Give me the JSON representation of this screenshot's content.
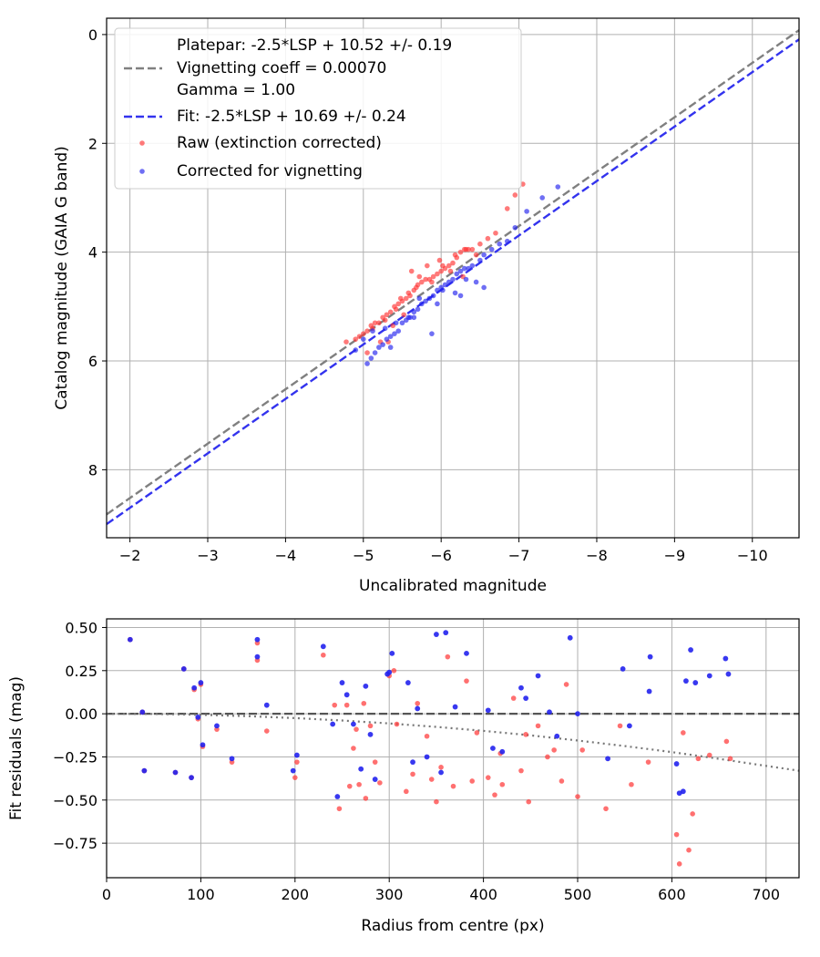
{
  "chart_data": [
    {
      "type": "scatter",
      "xlabel": "Uncalibrated magnitude",
      "ylabel": "Catalog magnitude (GAIA G band)",
      "xlim": [
        -1.7,
        -10.6
      ],
      "ylim": [
        9.25,
        -0.3
      ],
      "x_inverted": true,
      "y_inverted": true,
      "grid": true,
      "legend_position": "upper-left",
      "xticks": [
        -2,
        -3,
        -4,
        -5,
        -6,
        -7,
        -8,
        -9,
        -10
      ],
      "xtick_labels": [
        "−2",
        "−3",
        "−4",
        "−5",
        "−6",
        "−7",
        "−8",
        "−9",
        "−10"
      ],
      "yticks": [
        0,
        2,
        4,
        6,
        8
      ],
      "ytick_labels": [
        "0",
        "2",
        "4",
        "6",
        "8"
      ],
      "lines": [
        {
          "name": "Platepar",
          "label_lines": [
            "Platepar: -2.5*LSP + 10.52 +/- 0.19",
            "Vignetting coeff = 0.00070",
            "Gamma = 1.00"
          ],
          "style": "dashed",
          "color": "#808080",
          "x": [
            -1.7,
            -10.6
          ],
          "y": [
            8.82,
            -0.08
          ]
        },
        {
          "name": "Fit",
          "label_lines": [
            "Fit: -2.5*LSP + 10.69 +/- 0.24"
          ],
          "style": "dashed",
          "color": "#3333ee",
          "x": [
            -1.7,
            -10.6
          ],
          "y": [
            9.0,
            0.09
          ]
        }
      ],
      "series": [
        {
          "name": "Raw (extinction corrected)",
          "color": "#ff3333",
          "x": [
            -4.78,
            -4.9,
            -4.95,
            -5.0,
            -5.05,
            -5.1,
            -5.15,
            -5.2,
            -5.25,
            -5.3,
            -5.35,
            -5.4,
            -5.45,
            -5.5,
            -5.55,
            -5.6,
            -5.65,
            -5.7,
            -5.75,
            -5.8,
            -5.85,
            -5.9,
            -5.95,
            -6.0,
            -6.05,
            -6.1,
            -6.15,
            -6.2,
            -6.25,
            -6.3,
            -6.35,
            -6.4,
            -6.5,
            -6.6,
            -6.7,
            -6.85,
            -6.95,
            -7.05,
            -5.12,
            -5.28,
            -5.42,
            -5.58,
            -5.72,
            -5.88,
            -6.02,
            -6.18,
            -6.32,
            -5.05,
            -5.22,
            -5.38,
            -5.52,
            -5.68,
            -5.82,
            -5.98,
            -6.12,
            -6.28,
            -6.45,
            -5.32,
            -5.48,
            -5.62
          ],
          "y": [
            5.65,
            5.6,
            5.55,
            5.5,
            5.45,
            5.35,
            5.3,
            5.3,
            5.2,
            5.15,
            5.1,
            5.0,
            4.95,
            4.9,
            4.85,
            4.8,
            4.7,
            4.6,
            4.55,
            4.5,
            4.5,
            4.45,
            4.4,
            4.35,
            4.3,
            4.25,
            4.2,
            4.1,
            4.0,
            3.95,
            3.95,
            3.95,
            3.85,
            3.75,
            3.65,
            3.2,
            2.95,
            2.75,
            5.4,
            5.25,
            5.05,
            4.75,
            4.45,
            4.55,
            4.25,
            4.05,
            3.95,
            5.85,
            5.65,
            5.35,
            5.15,
            4.65,
            4.25,
            4.15,
            4.35,
            4.45,
            4.05,
            5.65,
            4.85,
            4.35
          ]
        },
        {
          "name": "Corrected for vignetting",
          "color": "#2222ee",
          "x": [
            -5.05,
            -5.1,
            -5.15,
            -5.2,
            -5.25,
            -5.3,
            -5.35,
            -5.4,
            -5.45,
            -5.5,
            -5.55,
            -5.6,
            -5.65,
            -5.7,
            -5.75,
            -5.8,
            -5.85,
            -5.9,
            -5.95,
            -6.0,
            -6.05,
            -6.1,
            -6.15,
            -6.2,
            -6.25,
            -6.3,
            -6.35,
            -6.4,
            -6.5,
            -6.55,
            -6.65,
            -6.75,
            -6.85,
            -6.95,
            -7.1,
            -7.3,
            -7.5,
            -4.9,
            -5.0,
            -5.12,
            -5.28,
            -5.42,
            -5.58,
            -5.72,
            -5.88,
            -6.02,
            -6.18,
            -6.32,
            -6.45,
            -5.35,
            -5.65,
            -5.95,
            -6.25,
            -6.55
          ],
          "y": [
            6.05,
            5.95,
            5.85,
            5.75,
            5.7,
            5.6,
            5.55,
            5.5,
            5.45,
            5.3,
            5.25,
            5.2,
            5.1,
            5.05,
            4.95,
            4.9,
            4.85,
            4.8,
            4.7,
            4.65,
            4.6,
            4.55,
            4.5,
            4.4,
            4.35,
            4.3,
            4.3,
            4.25,
            4.15,
            4.05,
            3.95,
            3.85,
            3.8,
            3.55,
            3.25,
            3.0,
            2.8,
            5.8,
            5.6,
            5.45,
            5.4,
            5.3,
            5.2,
            4.85,
            5.5,
            4.7,
            4.75,
            4.5,
            4.55,
            5.75,
            5.2,
            4.95,
            4.8,
            4.65
          ]
        }
      ],
      "legend": [
        {
          "label_lines": [
            "Platepar: -2.5*LSP + 10.52 +/- 0.19",
            "Vignetting coeff = 0.00070",
            "Gamma = 1.00"
          ],
          "kind": "line",
          "color": "#808080"
        },
        {
          "label_lines": [
            "Fit: -2.5*LSP + 10.69 +/- 0.24"
          ],
          "kind": "line",
          "color": "#3333ee"
        },
        {
          "label_lines": [
            "Raw (extinction corrected)"
          ],
          "kind": "point",
          "color": "#ff3333"
        },
        {
          "label_lines": [
            "Corrected for vignetting"
          ],
          "kind": "point",
          "color": "#2222ee"
        }
      ]
    },
    {
      "type": "scatter",
      "xlabel": "Radius from centre (px)",
      "ylabel": "Fit residuals (mag)",
      "xlim": [
        0,
        735
      ],
      "ylim": [
        -0.95,
        0.55
      ],
      "grid": true,
      "xticks": [
        0,
        100,
        200,
        300,
        400,
        500,
        600,
        700
      ],
      "xtick_labels": [
        "0",
        "100",
        "200",
        "300",
        "400",
        "500",
        "600",
        "700"
      ],
      "yticks": [
        0.5,
        0.25,
        0.0,
        -0.25,
        -0.5,
        -0.75
      ],
      "ytick_labels": [
        "0.50",
        "0.25",
        "0.00",
        "−0.25",
        "−0.50",
        "−0.75"
      ],
      "lines": [
        {
          "name": "zero",
          "style": "dashed",
          "color": "#555555",
          "x": [
            0,
            735
          ],
          "y": [
            0,
            0
          ]
        },
        {
          "name": "vignetting model",
          "style": "dotted",
          "color": "#777777",
          "x": [
            0,
            50,
            100,
            150,
            200,
            250,
            300,
            350,
            400,
            450,
            500,
            550,
            600,
            650,
            700,
            735
          ],
          "y": [
            0,
            -0.001,
            -0.006,
            -0.014,
            -0.025,
            -0.039,
            -0.056,
            -0.076,
            -0.099,
            -0.125,
            -0.155,
            -0.187,
            -0.222,
            -0.261,
            -0.302,
            -0.33
          ]
        }
      ],
      "series": [
        {
          "name": "Raw (extinction corrected)",
          "color": "#ff3333",
          "x": [
            25,
            40,
            38,
            73,
            82,
            90,
            93,
            97,
            100,
            102,
            117,
            133,
            160,
            160,
            170,
            200,
            202,
            230,
            242,
            247,
            255,
            258,
            262,
            265,
            268,
            273,
            275,
            280,
            285,
            290,
            300,
            305,
            308,
            318,
            325,
            330,
            340,
            345,
            350,
            355,
            362,
            368,
            382,
            388,
            393,
            405,
            412,
            418,
            420,
            432,
            440,
            445,
            448,
            458,
            468,
            475,
            483,
            488,
            500,
            505,
            530,
            545,
            557,
            575,
            605,
            608,
            612,
            618,
            622,
            628,
            640,
            658,
            662
          ],
          "x2_note": "",
          "y": [
            0.43,
            -0.33,
            0.01,
            -0.34,
            0.26,
            -0.37,
            0.14,
            -0.03,
            0.17,
            -0.19,
            -0.09,
            -0.28,
            0.41,
            0.31,
            -0.1,
            -0.37,
            -0.28,
            0.34,
            0.05,
            -0.55,
            0.05,
            -0.42,
            -0.2,
            -0.09,
            -0.41,
            0.06,
            -0.49,
            -0.07,
            -0.28,
            -0.4,
            0.22,
            0.25,
            -0.06,
            -0.45,
            -0.35,
            0.06,
            -0.13,
            -0.38,
            -0.51,
            -0.31,
            0.33,
            -0.42,
            0.19,
            -0.39,
            -0.11,
            -0.37,
            -0.47,
            -0.23,
            -0.41,
            0.09,
            -0.33,
            -0.12,
            -0.51,
            -0.07,
            -0.25,
            -0.21,
            -0.39,
            0.17,
            -0.48,
            -0.21,
            -0.55,
            -0.07,
            -0.41,
            -0.28,
            -0.7,
            -0.87,
            -0.11,
            -0.79,
            -0.58,
            -0.26,
            -0.24,
            -0.16,
            -0.26
          ]
        },
        {
          "name": "Corrected for vignetting",
          "color": "#2222ee",
          "x": [
            25,
            40,
            38,
            73,
            82,
            90,
            93,
            97,
            100,
            102,
            117,
            133,
            160,
            160,
            170,
            198,
            202,
            230,
            240,
            245,
            250,
            255,
            262,
            270,
            275,
            280,
            285,
            298,
            300,
            303,
            320,
            325,
            330,
            340,
            350,
            355,
            360,
            370,
            382,
            405,
            410,
            420,
            440,
            445,
            458,
            470,
            478,
            492,
            500,
            532,
            548,
            555,
            576,
            577,
            605,
            608,
            612,
            615,
            620,
            625,
            640,
            657,
            660
          ],
          "y": [
            0.43,
            -0.33,
            0.01,
            -0.34,
            0.26,
            -0.37,
            0.15,
            -0.02,
            0.18,
            -0.18,
            -0.07,
            -0.26,
            0.43,
            0.33,
            0.05,
            -0.33,
            -0.24,
            0.39,
            -0.06,
            -0.48,
            0.18,
            0.11,
            -0.06,
            -0.32,
            0.16,
            -0.12,
            -0.38,
            0.23,
            0.24,
            0.35,
            0.18,
            -0.28,
            0.03,
            -0.25,
            0.46,
            -0.34,
            0.47,
            0.04,
            0.35,
            0.02,
            -0.2,
            -0.22,
            0.15,
            0.09,
            0.22,
            0.01,
            -0.13,
            0.44,
            0.0,
            -0.26,
            0.26,
            -0.07,
            0.13,
            0.33,
            -0.29,
            -0.46,
            -0.45,
            0.19,
            0.37,
            0.18,
            0.22,
            0.32,
            0.23
          ]
        }
      ]
    }
  ]
}
